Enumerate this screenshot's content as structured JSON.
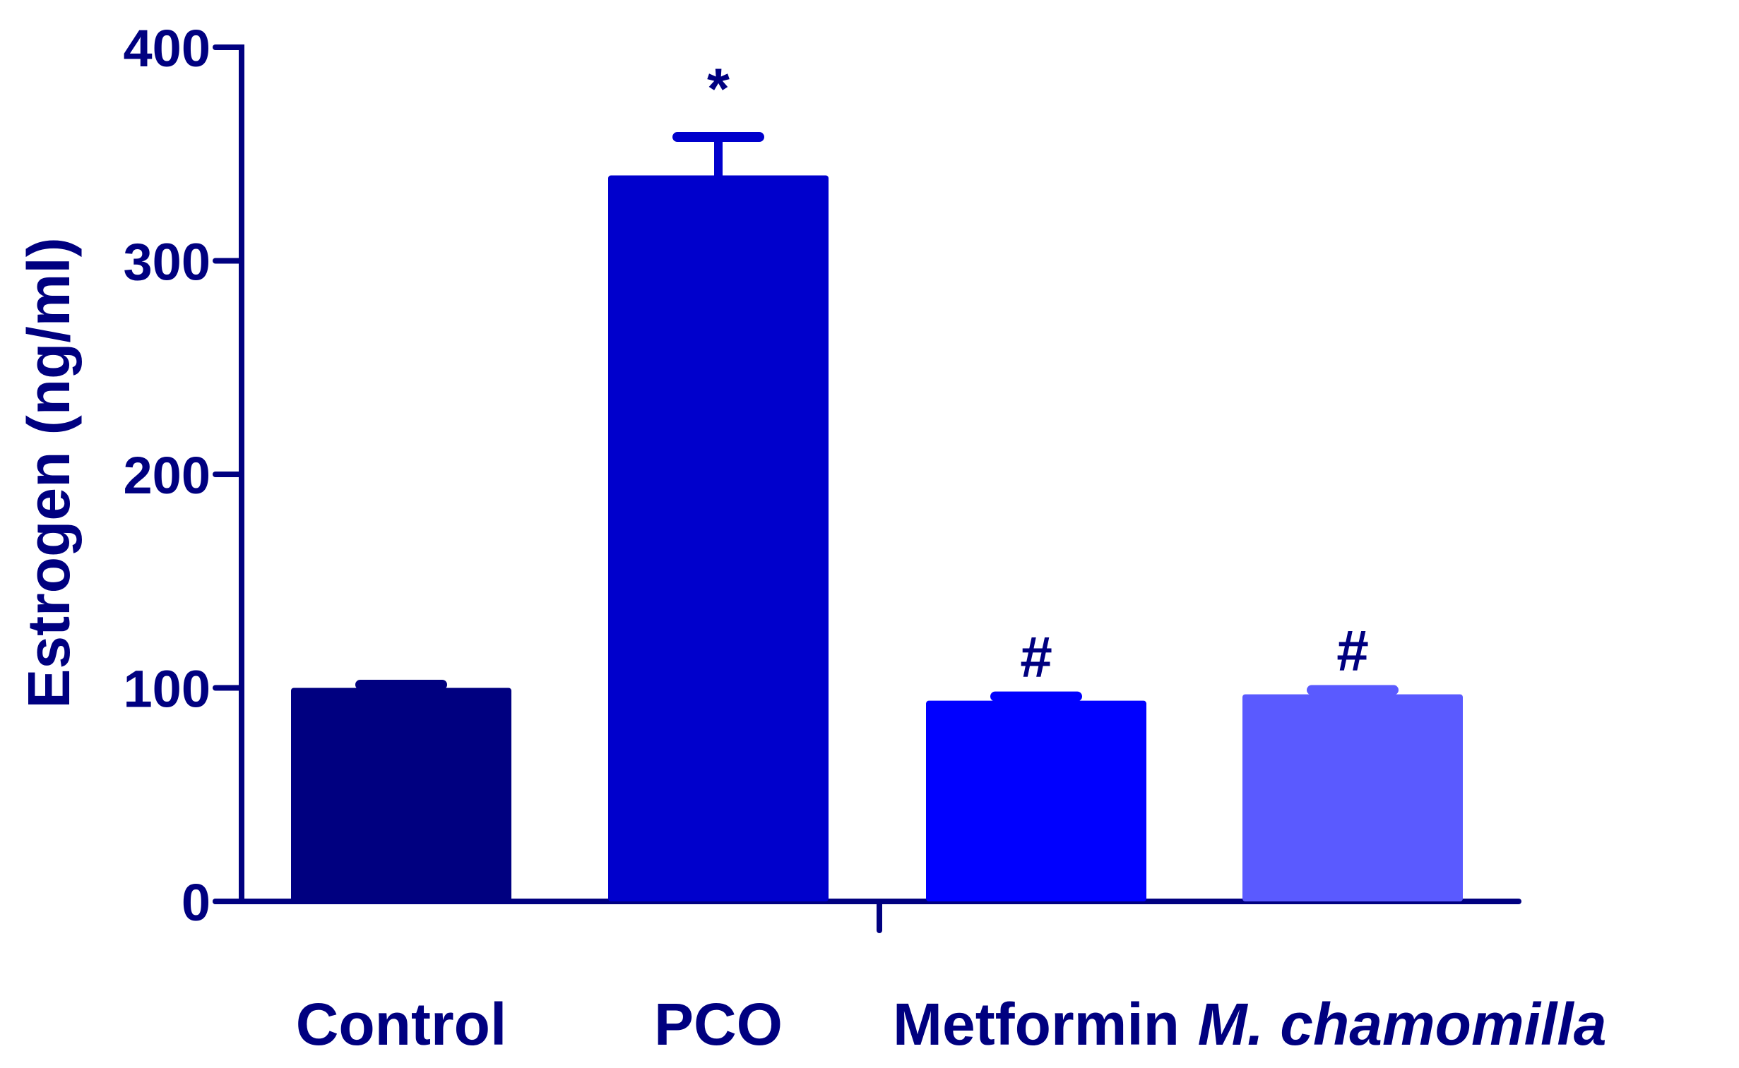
{
  "chart_data": {
    "type": "bar",
    "title": "",
    "xlabel": "",
    "ylabel": "Estrogen (ng/ml)",
    "ylim": [
      0,
      400
    ],
    "yticks": [
      0,
      100,
      200,
      300,
      400
    ],
    "ytick_labels": [
      "0",
      "100",
      "200",
      "300",
      "400"
    ],
    "grid": false,
    "categories": [
      "Control",
      "PCO",
      "Metformin",
      "M. chamomilla"
    ],
    "category_styles": [
      "normal",
      "normal",
      "normal",
      "italic"
    ],
    "values": [
      100,
      340,
      94,
      97
    ],
    "errors": [
      1.5,
      18,
      2,
      2
    ],
    "annotations": [
      "",
      "*",
      "#",
      "#"
    ],
    "bar_colors": [
      "#000080",
      "#0000CC",
      "#0000FF",
      "#5A5AFF"
    ],
    "axis_color": "#000080"
  }
}
